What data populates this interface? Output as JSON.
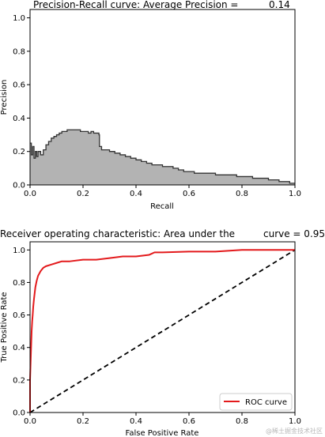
{
  "figure": {
    "watermark": "@稀土掘金技术社区"
  },
  "chart_data": [
    {
      "type": "area",
      "title_left": "Precision-Recall curve: Average Precision =",
      "title_right": "0.14",
      "xlabel": "Recall",
      "ylabel": "Precision",
      "xlim": [
        0.0,
        1.0
      ],
      "ylim": [
        0.0,
        1.05
      ],
      "xticks": [
        "0.0",
        "0.2",
        "0.4",
        "0.6",
        "0.8",
        "1.0"
      ],
      "yticks": [
        "0.0",
        "0.2",
        "0.4",
        "0.6",
        "0.8",
        "1.0"
      ],
      "grid": false,
      "fill_color": "#b3b3b3",
      "line_color": "#333333",
      "recall": [
        0.0,
        0.005,
        0.01,
        0.015,
        0.02,
        0.025,
        0.03,
        0.04,
        0.05,
        0.06,
        0.07,
        0.08,
        0.09,
        0.1,
        0.11,
        0.12,
        0.13,
        0.14,
        0.15,
        0.16,
        0.17,
        0.18,
        0.19,
        0.2,
        0.21,
        0.22,
        0.23,
        0.24,
        0.25,
        0.26,
        0.262,
        0.27,
        0.28,
        0.3,
        0.32,
        0.34,
        0.36,
        0.38,
        0.4,
        0.42,
        0.44,
        0.46,
        0.48,
        0.5,
        0.52,
        0.54,
        0.56,
        0.58,
        0.6,
        0.62,
        0.64,
        0.66,
        0.68,
        0.7,
        0.72,
        0.74,
        0.76,
        0.78,
        0.8,
        0.82,
        0.84,
        0.86,
        0.88,
        0.9,
        0.92,
        0.94,
        0.96,
        0.98,
        1.0
      ],
      "precision": [
        0.25,
        0.18,
        0.23,
        0.16,
        0.2,
        0.17,
        0.2,
        0.18,
        0.21,
        0.24,
        0.26,
        0.28,
        0.29,
        0.3,
        0.31,
        0.32,
        0.32,
        0.33,
        0.33,
        0.33,
        0.33,
        0.33,
        0.32,
        0.32,
        0.32,
        0.31,
        0.32,
        0.31,
        0.31,
        0.3,
        0.23,
        0.21,
        0.21,
        0.2,
        0.19,
        0.18,
        0.17,
        0.16,
        0.15,
        0.14,
        0.13,
        0.12,
        0.12,
        0.11,
        0.11,
        0.1,
        0.09,
        0.08,
        0.08,
        0.07,
        0.07,
        0.07,
        0.07,
        0.06,
        0.06,
        0.06,
        0.06,
        0.05,
        0.05,
        0.05,
        0.04,
        0.04,
        0.04,
        0.03,
        0.03,
        0.02,
        0.02,
        0.01,
        0.01
      ]
    },
    {
      "type": "line",
      "title_left": "Receiver operating characteristic: Area under the",
      "title_right": "curve = 0.95",
      "xlabel": "False Positive Rate",
      "ylabel": "True Positive Rate",
      "xlim": [
        0.0,
        1.0
      ],
      "ylim": [
        0.0,
        1.05
      ],
      "xticks": [
        "0.0",
        "0.2",
        "0.4",
        "0.6",
        "0.8",
        "1.0"
      ],
      "yticks": [
        "0.0",
        "0.2",
        "0.4",
        "0.6",
        "0.8",
        "1.0"
      ],
      "grid": false,
      "legend_position": "lower-right",
      "series": [
        {
          "name": "ROC curve",
          "color": "#e31a1c",
          "style": "solid",
          "x": [
            0.0,
            0.0,
            0.002,
            0.004,
            0.006,
            0.008,
            0.01,
            0.012,
            0.015,
            0.02,
            0.025,
            0.03,
            0.04,
            0.05,
            0.06,
            0.08,
            0.1,
            0.12,
            0.15,
            0.2,
            0.25,
            0.3,
            0.35,
            0.4,
            0.45,
            0.47,
            0.5,
            0.6,
            0.7,
            0.8,
            0.9,
            1.0
          ],
          "y": [
            0.0,
            0.2,
            0.3,
            0.4,
            0.5,
            0.56,
            0.6,
            0.65,
            0.7,
            0.77,
            0.81,
            0.84,
            0.87,
            0.89,
            0.9,
            0.91,
            0.92,
            0.93,
            0.93,
            0.94,
            0.94,
            0.95,
            0.96,
            0.96,
            0.97,
            0.985,
            0.985,
            0.99,
            0.99,
            1.0,
            1.0,
            1.0
          ]
        },
        {
          "color": "#000000",
          "style": "dashed",
          "x": [
            0.0,
            1.0
          ],
          "y": [
            0.0,
            1.0
          ]
        }
      ]
    }
  ]
}
